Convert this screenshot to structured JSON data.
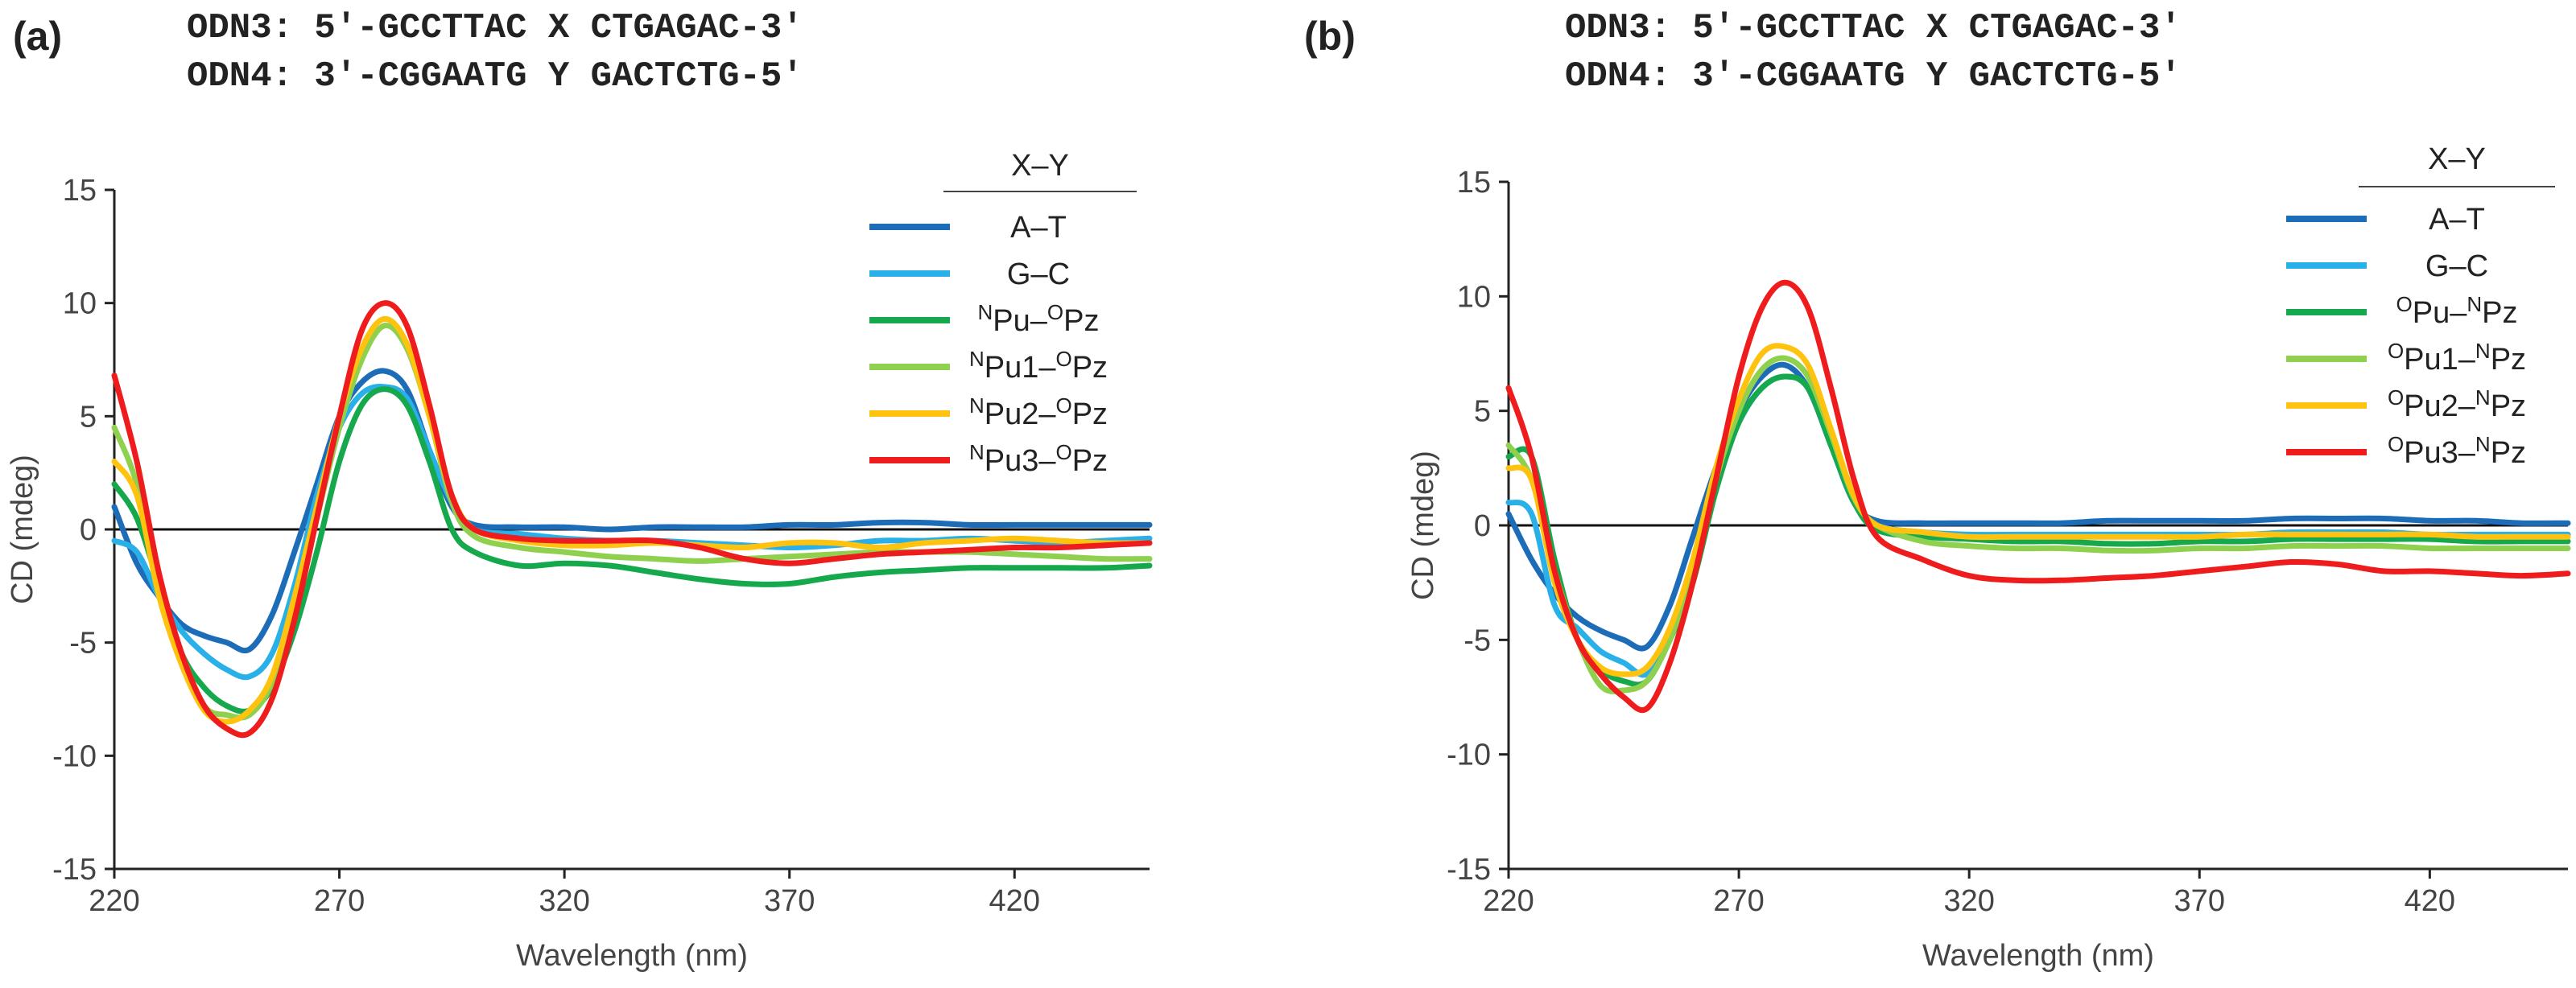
{
  "panels": [
    {
      "label": "(a)",
      "seq1": "ODN3: 5′-GCCTTAC X CTGAGAC-3′",
      "seq2": "ODN4: 3′-CGGAATG Y GACTCTG-5′"
    },
    {
      "label": "(b)",
      "seq1": "ODN3: 5′-GCCTTAC X CTGAGAC-3′",
      "seq2": "ODN4: 3′-CGGAATG Y GACTCTG-5′"
    }
  ],
  "chart_data": [
    {
      "type": "line",
      "panel": "(a)",
      "xlabel": "Wavelength (nm)",
      "ylabel": "CD (mdeg)",
      "xlim": [
        220,
        450
      ],
      "ylim": [
        -15,
        15
      ],
      "xticks": [
        220,
        270,
        320,
        370,
        420
      ],
      "yticks": [
        15,
        10,
        5,
        0,
        -5,
        -10,
        -15
      ],
      "legend_title": "X–Y",
      "legend_position": "top-right",
      "x": [
        220,
        225,
        230,
        235,
        240,
        245,
        250,
        255,
        260,
        265,
        270,
        275,
        280,
        285,
        290,
        295,
        300,
        310,
        320,
        330,
        340,
        350,
        360,
        370,
        380,
        390,
        400,
        410,
        420,
        430,
        440,
        450
      ],
      "series": [
        {
          "name": "A–T",
          "sup1": "",
          "base1": "A–T",
          "sup2": "",
          "base2": "",
          "color": "#1d6cb8",
          "values": [
            1.0,
            -1.5,
            -3.0,
            -4.2,
            -4.7,
            -5.0,
            -5.3,
            -3.8,
            -1.0,
            2.0,
            5.0,
            6.5,
            7.0,
            6.2,
            3.5,
            1.0,
            0.2,
            0.1,
            0.1,
            0.0,
            0.1,
            0.1,
            0.1,
            0.2,
            0.2,
            0.3,
            0.3,
            0.2,
            0.2,
            0.2,
            0.2,
            0.2
          ]
        },
        {
          "name": "G–C",
          "sup1": "",
          "base1": "G–C",
          "sup2": "",
          "base2": "",
          "color": "#2ab0e8",
          "values": [
            -0.5,
            -1.0,
            -3.0,
            -4.5,
            -5.5,
            -6.2,
            -6.5,
            -5.5,
            -2.5,
            1.5,
            4.5,
            6.0,
            6.3,
            5.8,
            3.5,
            1.2,
            0.0,
            -0.2,
            -0.4,
            -0.5,
            -0.5,
            -0.6,
            -0.7,
            -0.8,
            -0.7,
            -0.5,
            -0.5,
            -0.4,
            -0.5,
            -0.6,
            -0.5,
            -0.4
          ]
        },
        {
          "name": "NPu–OPz",
          "sup1": "N",
          "base1": "Pu–",
          "sup2": "O",
          "base2": "Pz",
          "color": "#16a84c",
          "values": [
            2.0,
            0.5,
            -2.5,
            -5.5,
            -7.0,
            -7.8,
            -8.0,
            -7.0,
            -4.5,
            -1.0,
            3.0,
            5.5,
            6.2,
            5.5,
            3.0,
            0.0,
            -1.0,
            -1.6,
            -1.5,
            -1.6,
            -1.9,
            -2.2,
            -2.4,
            -2.4,
            -2.1,
            -1.9,
            -1.8,
            -1.7,
            -1.7,
            -1.7,
            -1.7,
            -1.6
          ]
        },
        {
          "name": "NPu1–OPz",
          "sup1": "N",
          "base1": "Pu1–",
          "sup2": "O",
          "base2": "Pz",
          "color": "#8fd14f",
          "values": [
            4.5,
            2.0,
            -2.5,
            -5.5,
            -7.8,
            -8.2,
            -8.2,
            -6.8,
            -3.5,
            0.5,
            4.5,
            7.5,
            9.0,
            8.0,
            5.0,
            1.2,
            -0.3,
            -0.8,
            -1.0,
            -1.2,
            -1.3,
            -1.4,
            -1.3,
            -1.2,
            -1.1,
            -1.0,
            -1.0,
            -1.0,
            -1.1,
            -1.2,
            -1.3,
            -1.3
          ]
        },
        {
          "name": "NPu2–OPz",
          "sup1": "N",
          "base1": "Pu2–",
          "sup2": "O",
          "base2": "Pz",
          "color": "#ffc20e",
          "values": [
            3.0,
            1.5,
            -3.0,
            -6.0,
            -8.0,
            -8.5,
            -8.0,
            -6.5,
            -3.0,
            1.0,
            5.0,
            8.0,
            9.3,
            8.2,
            5.0,
            1.5,
            0.0,
            -0.5,
            -0.7,
            -0.7,
            -0.6,
            -0.7,
            -0.8,
            -0.6,
            -0.6,
            -0.8,
            -0.6,
            -0.5,
            -0.4,
            -0.5,
            -0.6,
            -0.6
          ]
        },
        {
          "name": "NPu3–OPz",
          "sup1": "N",
          "base1": "Pu3–",
          "sup2": "O",
          "base2": "Pz",
          "color": "#ee1c1c",
          "values": [
            6.8,
            3.0,
            -2.0,
            -5.5,
            -7.8,
            -8.8,
            -9.0,
            -7.5,
            -4.0,
            0.5,
            5.0,
            8.8,
            10.0,
            9.0,
            5.5,
            1.5,
            0.0,
            -0.4,
            -0.5,
            -0.5,
            -0.5,
            -0.8,
            -1.3,
            -1.5,
            -1.3,
            -1.1,
            -1.0,
            -0.9,
            -0.8,
            -0.8,
            -0.7,
            -0.6
          ]
        }
      ]
    },
    {
      "type": "line",
      "panel": "(b)",
      "xlabel": "Wavelength (nm)",
      "ylabel": "CD (mdeg)",
      "xlim": [
        220,
        450
      ],
      "ylim": [
        -15,
        15
      ],
      "xticks": [
        220,
        270,
        320,
        370,
        420
      ],
      "yticks": [
        15,
        10,
        5,
        0,
        -5,
        -10,
        -15
      ],
      "legend_title": "X–Y",
      "legend_position": "top-right",
      "x": [
        220,
        225,
        230,
        235,
        240,
        245,
        250,
        255,
        260,
        265,
        270,
        275,
        280,
        285,
        290,
        295,
        300,
        310,
        320,
        330,
        340,
        350,
        360,
        370,
        380,
        390,
        400,
        410,
        420,
        430,
        440,
        450
      ],
      "series": [
        {
          "name": "A–T",
          "sup1": "",
          "base1": "A–T",
          "sup2": "",
          "base2": "",
          "color": "#1d6cb8",
          "values": [
            0.5,
            -1.5,
            -3.0,
            -4.0,
            -4.6,
            -5.0,
            -5.3,
            -3.5,
            -0.5,
            2.5,
            5.0,
            6.5,
            7.0,
            6.0,
            3.5,
            1.0,
            0.2,
            0.1,
            0.1,
            0.1,
            0.1,
            0.2,
            0.2,
            0.2,
            0.2,
            0.3,
            0.3,
            0.3,
            0.2,
            0.2,
            0.1,
            0.1
          ]
        },
        {
          "name": "G–C",
          "sup1": "",
          "base1": "G–C",
          "sup2": "",
          "base2": "",
          "color": "#2ab0e8",
          "values": [
            1.0,
            0.5,
            -3.5,
            -4.5,
            -5.5,
            -6.0,
            -6.5,
            -5.0,
            -2.0,
            2.0,
            4.5,
            6.0,
            6.5,
            6.0,
            3.5,
            1.0,
            0.0,
            -0.3,
            -0.4,
            -0.4,
            -0.4,
            -0.4,
            -0.4,
            -0.4,
            -0.4,
            -0.3,
            -0.3,
            -0.3,
            -0.4,
            -0.4,
            -0.4,
            -0.4
          ]
        },
        {
          "name": "OPu–NPz",
          "sup1": "O",
          "base1": "Pu–",
          "sup2": "N",
          "base2": "Pz",
          "color": "#16a84c",
          "values": [
            3.0,
            3.0,
            -1.5,
            -5.0,
            -6.3,
            -6.8,
            -6.8,
            -5.0,
            -2.5,
            1.5,
            4.5,
            6.0,
            6.5,
            6.0,
            3.5,
            1.0,
            -0.2,
            -0.5,
            -0.6,
            -0.7,
            -0.7,
            -0.8,
            -0.8,
            -0.7,
            -0.7,
            -0.6,
            -0.6,
            -0.6,
            -0.6,
            -0.7,
            -0.7,
            -0.7
          ]
        },
        {
          "name": "OPu1–NPz",
          "sup1": "O",
          "base1": "Pu1–",
          "sup2": "N",
          "base2": "Pz",
          "color": "#8fd14f",
          "values": [
            3.5,
            2.0,
            -2.0,
            -5.0,
            -7.0,
            -7.2,
            -6.8,
            -5.0,
            -2.0,
            2.0,
            5.0,
            6.8,
            7.3,
            6.5,
            4.0,
            1.2,
            0.0,
            -0.7,
            -0.9,
            -1.0,
            -1.0,
            -1.1,
            -1.1,
            -1.0,
            -1.0,
            -0.9,
            -0.9,
            -0.9,
            -1.0,
            -1.0,
            -1.0,
            -1.0
          ]
        },
        {
          "name": "OPu2–NPz",
          "sup1": "O",
          "base1": "Pu2–",
          "sup2": "N",
          "base2": "Pz",
          "color": "#ffc20e",
          "values": [
            2.5,
            2.0,
            -2.5,
            -5.0,
            -6.2,
            -6.5,
            -6.2,
            -4.5,
            -1.5,
            2.5,
            5.5,
            7.5,
            7.8,
            7.0,
            4.2,
            1.3,
            0.0,
            -0.3,
            -0.5,
            -0.5,
            -0.5,
            -0.5,
            -0.5,
            -0.5,
            -0.4,
            -0.4,
            -0.4,
            -0.4,
            -0.4,
            -0.5,
            -0.5,
            -0.5
          ]
        },
        {
          "name": "OPu3–NPz",
          "sup1": "O",
          "base1": "Pu3–",
          "sup2": "N",
          "base2": "Pz",
          "color": "#ee1c1c",
          "values": [
            6.0,
            3.0,
            -2.0,
            -5.0,
            -6.5,
            -7.5,
            -8.0,
            -6.0,
            -2.5,
            2.0,
            6.5,
            9.5,
            10.6,
            9.5,
            6.0,
            2.0,
            -0.5,
            -1.5,
            -2.2,
            -2.4,
            -2.4,
            -2.3,
            -2.2,
            -2.0,
            -1.8,
            -1.6,
            -1.7,
            -2.0,
            -2.0,
            -2.1,
            -2.2,
            -2.1
          ]
        }
      ]
    }
  ]
}
